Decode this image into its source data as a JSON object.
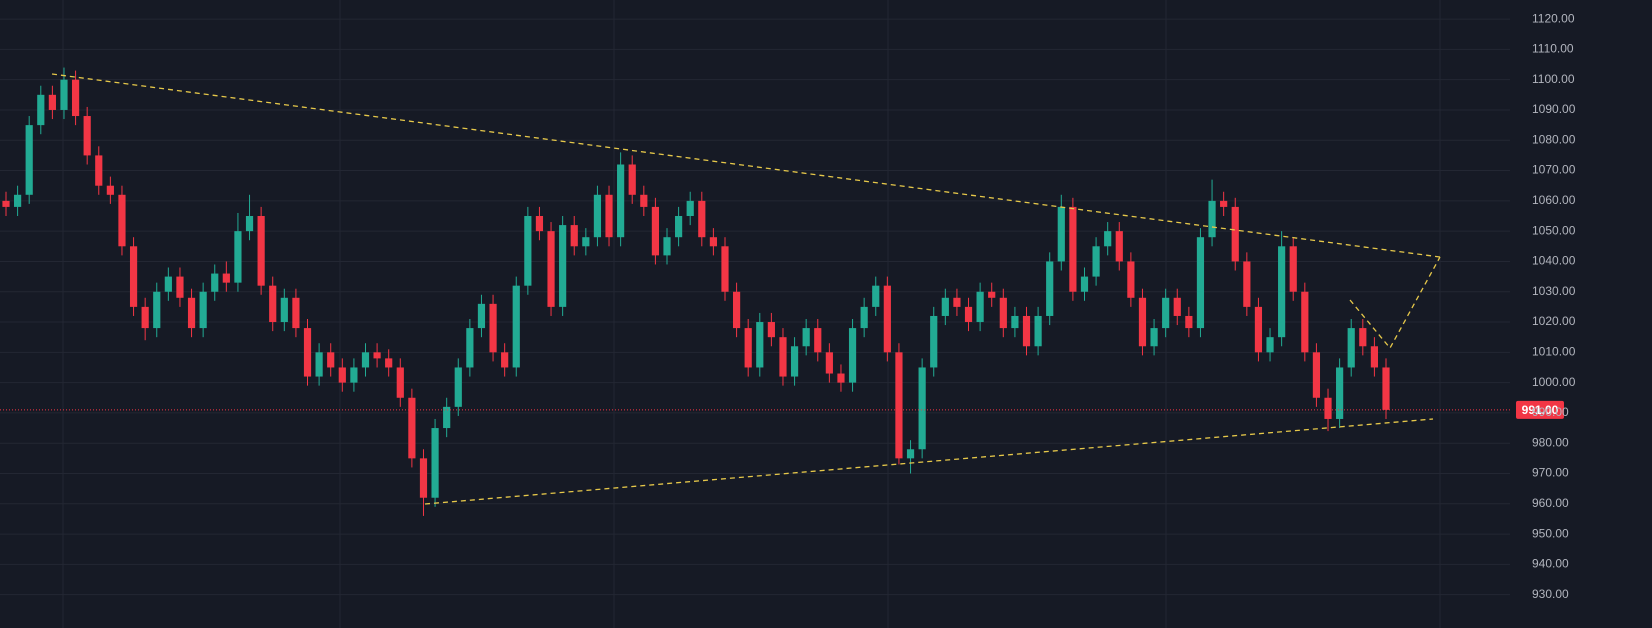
{
  "chart_data": {
    "type": "candlestick",
    "up_color": "#22ab94",
    "down_color": "#f23645",
    "ylim": [
      919,
      1126.3
    ],
    "yticks": [
      {
        "value": 1120,
        "label": "1120.00"
      },
      {
        "value": 1110,
        "label": "1110.00"
      },
      {
        "value": 1100,
        "label": "1100.00"
      },
      {
        "value": 1090,
        "label": "1090.00"
      },
      {
        "value": 1080,
        "label": "1080.00"
      },
      {
        "value": 1070,
        "label": "1070.00"
      },
      {
        "value": 1060,
        "label": "1060.00"
      },
      {
        "value": 1050,
        "label": "1050.00"
      },
      {
        "value": 1040,
        "label": "1040.00"
      },
      {
        "value": 1030,
        "label": "1030.00"
      },
      {
        "value": 1020,
        "label": "1020.00"
      },
      {
        "value": 1010,
        "label": "1010.00"
      },
      {
        "value": 1000,
        "label": "1000.00"
      },
      {
        "value": 990,
        "label": "990.00"
      },
      {
        "value": 980,
        "label": "980.00"
      },
      {
        "value": 970,
        "label": "970.00"
      },
      {
        "value": 960,
        "label": "960.00"
      },
      {
        "value": 950,
        "label": "950.00"
      },
      {
        "value": 940,
        "label": "940.00"
      },
      {
        "value": 930,
        "label": "930.00"
      }
    ],
    "grid": true,
    "last_price": {
      "value": 991,
      "label": "991.00"
    },
    "open": [
      1060,
      1058,
      1062,
      1085,
      1095,
      1090,
      1100,
      1088,
      1075,
      1065,
      1062,
      1045,
      1025,
      1018,
      1030,
      1035,
      1028,
      1018,
      1030,
      1036,
      1033,
      1050,
      1055,
      1032,
      1020,
      1028,
      1018,
      1002,
      1010,
      1005,
      1000,
      1005,
      1010,
      1008,
      1005,
      995,
      975,
      962,
      985,
      992,
      1005,
      1018,
      1026,
      1010,
      1005,
      1032,
      1055,
      1050,
      1025,
      1052,
      1045,
      1048,
      1062,
      1048,
      1072,
      1062,
      1058,
      1042,
      1048,
      1055,
      1060,
      1048,
      1045,
      1030,
      1018,
      1005,
      1020,
      1015,
      1002,
      1012,
      1018,
      1010,
      1003,
      1000,
      1018,
      1025,
      1032,
      1010,
      975,
      978,
      1005,
      1022,
      1028,
      1025,
      1020,
      1030,
      1028,
      1018,
      1022,
      1012,
      1022,
      1040,
      1058,
      1030,
      1035,
      1045,
      1050,
      1040,
      1028,
      1012,
      1018,
      1028,
      1022,
      1018,
      1048,
      1060,
      1058,
      1040,
      1025,
      1010,
      1015,
      1045,
      1030,
      1010,
      995,
      988,
      1005,
      1018,
      1012,
      1005
    ],
    "high": [
      1063,
      1065,
      1088,
      1098,
      1098,
      1104,
      1103,
      1091,
      1078,
      1068,
      1065,
      1048,
      1028,
      1033,
      1038,
      1038,
      1031,
      1033,
      1039,
      1040,
      1056,
      1062,
      1058,
      1035,
      1031,
      1031,
      1021,
      1013,
      1013,
      1008,
      1008,
      1013,
      1013,
      1011,
      1008,
      998,
      978,
      988,
      995,
      1008,
      1021,
      1029,
      1029,
      1013,
      1035,
      1058,
      1058,
      1053,
      1055,
      1055,
      1051,
      1065,
      1065,
      1076,
      1075,
      1065,
      1061,
      1051,
      1058,
      1063,
      1063,
      1051,
      1048,
      1033,
      1021,
      1023,
      1023,
      1018,
      1015,
      1021,
      1021,
      1013,
      1006,
      1021,
      1028,
      1035,
      1035,
      1013,
      981,
      1008,
      1025,
      1031,
      1031,
      1028,
      1033,
      1033,
      1031,
      1025,
      1025,
      1025,
      1043,
      1062,
      1061,
      1038,
      1048,
      1053,
      1053,
      1043,
      1031,
      1021,
      1031,
      1031,
      1025,
      1051,
      1067,
      1063,
      1061,
      1043,
      1028,
      1018,
      1050,
      1048,
      1033,
      1013,
      998,
      1008,
      1021,
      1021,
      1015,
      1008
    ],
    "low": [
      1055,
      1055,
      1059,
      1082,
      1087,
      1087,
      1085,
      1072,
      1062,
      1059,
      1042,
      1022,
      1014,
      1015,
      1027,
      1025,
      1015,
      1015,
      1027,
      1030,
      1030,
      1047,
      1029,
      1017,
      1017,
      1015,
      999,
      999,
      1002,
      997,
      997,
      1002,
      1005,
      1002,
      992,
      972,
      956,
      959,
      982,
      989,
      1002,
      1015,
      1007,
      1002,
      1002,
      1029,
      1047,
      1022,
      1022,
      1042,
      1042,
      1045,
      1045,
      1045,
      1059,
      1055,
      1039,
      1039,
      1045,
      1052,
      1045,
      1042,
      1027,
      1015,
      1002,
      1002,
      1012,
      999,
      999,
      1009,
      1007,
      1000,
      997,
      997,
      1015,
      1022,
      1007,
      973,
      970,
      975,
      1002,
      1019,
      1022,
      1017,
      1017,
      1025,
      1015,
      1015,
      1009,
      1009,
      1019,
      1037,
      1027,
      1027,
      1032,
      1042,
      1037,
      1025,
      1009,
      1009,
      1015,
      1019,
      1015,
      1015,
      1045,
      1055,
      1037,
      1022,
      1007,
      1007,
      1012,
      1027,
      1007,
      992,
      984,
      985,
      1002,
      1009,
      1002,
      988
    ],
    "close": [
      1058,
      1062,
      1085,
      1095,
      1090,
      1100,
      1088,
      1075,
      1065,
      1062,
      1045,
      1025,
      1018,
      1030,
      1035,
      1028,
      1018,
      1030,
      1036,
      1033,
      1050,
      1055,
      1032,
      1020,
      1028,
      1018,
      1002,
      1010,
      1005,
      1000,
      1005,
      1010,
      1008,
      1005,
      995,
      975,
      962,
      985,
      992,
      1005,
      1018,
      1026,
      1010,
      1005,
      1032,
      1055,
      1050,
      1025,
      1052,
      1045,
      1048,
      1062,
      1048,
      1072,
      1062,
      1058,
      1042,
      1048,
      1055,
      1060,
      1048,
      1045,
      1030,
      1018,
      1005,
      1020,
      1015,
      1002,
      1012,
      1018,
      1010,
      1003,
      1000,
      1018,
      1025,
      1032,
      1010,
      975,
      978,
      1005,
      1022,
      1028,
      1025,
      1020,
      1030,
      1028,
      1018,
      1022,
      1012,
      1022,
      1040,
      1058,
      1030,
      1035,
      1045,
      1050,
      1040,
      1028,
      1012,
      1018,
      1028,
      1022,
      1018,
      1048,
      1060,
      1058,
      1040,
      1025,
      1010,
      1015,
      1045,
      1030,
      1010,
      995,
      988,
      1005,
      1018,
      1012,
      1005,
      991
    ]
  }
}
